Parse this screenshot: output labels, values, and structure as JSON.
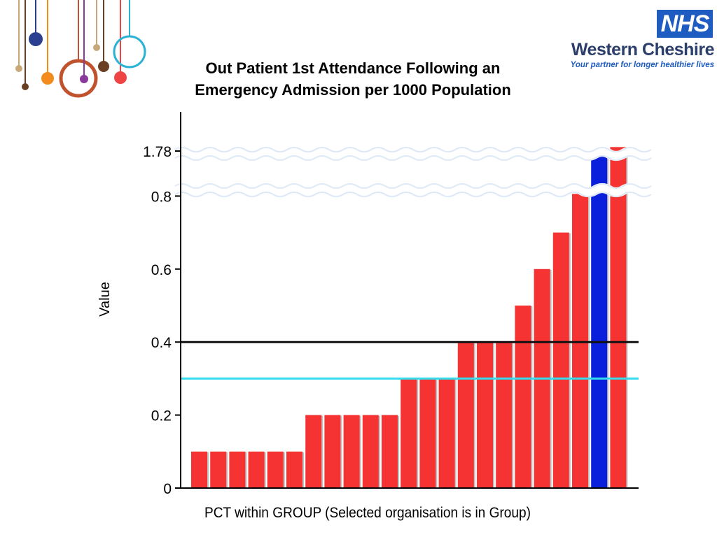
{
  "header": {
    "logo_badge": "NHS",
    "org_name": "Western Cheshire",
    "tagline": "Your partner for longer healthier lives"
  },
  "colors": {
    "bar": "#f53333",
    "selected_bar": "#0a1fdb",
    "reference_line_black": "#111111",
    "reference_line_cyan": "#33ddee",
    "logo_blue": "#1f5cc1",
    "org_text": "#2c3e6a"
  },
  "chart_data": {
    "type": "bar",
    "title_lines": [
      "Out Patient 1st Attendance Following an",
      "Emergency Admission per 1000 Population"
    ],
    "xlabel": "PCT within GROUP (Selected organisation is in Group)",
    "ylabel": "Value",
    "y_ticks": [
      "0",
      "0.2",
      "0.4",
      "0.6",
      "0.8",
      "1.78"
    ],
    "axis_break": "between 0.8 and 1.78",
    "grid": false,
    "values": [
      0.1,
      0.1,
      0.1,
      0.1,
      0.1,
      0.1,
      0.2,
      0.2,
      0.2,
      0.2,
      0.2,
      0.3,
      0.3,
      0.3,
      0.4,
      0.4,
      0.4,
      0.5,
      0.6,
      0.7,
      0.84,
      1.7,
      1.84
    ],
    "selected_index": 21,
    "reference_lines": [
      {
        "value": 0.4,
        "color": "black"
      },
      {
        "value": 0.3,
        "color": "cyan"
      }
    ]
  }
}
